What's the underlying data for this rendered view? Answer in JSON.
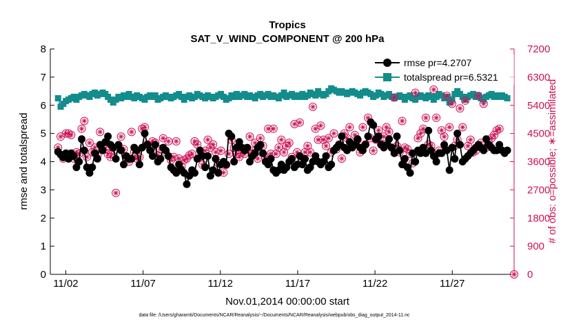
{
  "chart_data": {
    "type": "line",
    "title": "Tropics",
    "subtitle": "SAT_V_WIND_COMPONENT @ 200 hPa",
    "xlabel": "Nov.01,2014 00:00:00 start",
    "ylabel_left": "rmse and totalspread",
    "ylabel_right": "# of obs: o=possible; ∗=assimilated",
    "footnote": "data file: /Users/gharamti/Documents/NCAR/Reanalysis/~/Documents/NCAR/Reanalysis/webpub/obs_diag_output_2014-11.nc",
    "xlim": [
      0.5,
      30.5
    ],
    "ylim_left": [
      0,
      8
    ],
    "ylim_right": [
      0,
      7200
    ],
    "x_ticks": [
      1.5,
      6.5,
      11.5,
      16.5,
      21.5,
      26.5
    ],
    "x_tick_labels": [
      "11/02",
      "11/07",
      "11/12",
      "11/17",
      "11/22",
      "11/27"
    ],
    "left_ticks": [
      "0",
      "1",
      "2",
      "3",
      "4",
      "5",
      "6",
      "7",
      "8"
    ],
    "right_ticks": [
      "0",
      "900",
      "1800",
      "2700",
      "3600",
      "4500",
      "5400",
      "6300",
      "7200"
    ],
    "colors": {
      "rmse": "#000000",
      "spread": "#138c8c",
      "obs": "#cc1156"
    },
    "series": [
      {
        "name": "rmse pr=4.2707",
        "axis": "left",
        "values": [
          4.35,
          4.25,
          4.15,
          4.3,
          4.1,
          4.3,
          4.2,
          3.8,
          4.0,
          4.8,
          4.4,
          3.8,
          3.6,
          3.8,
          4.3,
          4.1,
          4.6,
          4.4,
          4.7,
          4.9,
          4.6,
          4.5,
          4.1,
          4.6,
          4.4,
          3.9,
          4.2,
          4.1,
          4.1,
          4.5,
          4.4,
          3.9,
          4.5,
          5.0,
          4.6,
          4.4,
          4.2,
          4.6,
          4.0,
          4.1,
          4.5,
          4.4,
          4.2,
          3.8,
          3.7,
          3.6,
          3.9,
          3.7,
          3.6,
          3.2,
          3.5,
          3.7,
          3.6,
          4.1,
          4.4,
          4.2,
          3.8,
          4.2,
          3.5,
          3.7,
          4.1,
          3.6,
          3.9,
          4.0,
          3.9,
          5.0,
          4.9,
          4.0,
          4.5,
          4.7,
          4.5,
          4.4,
          4.5,
          4.0,
          4.2,
          4.3,
          4.5,
          4.6,
          4.3,
          4.0,
          3.9,
          4.1,
          3.7,
          3.6,
          3.7,
          3.9,
          3.7,
          3.8,
          4.0,
          4.1,
          3.8,
          3.9,
          4.2,
          3.9,
          4.1,
          3.7,
          3.8,
          4.0,
          4.2,
          4.0,
          3.9,
          4.0,
          4.2,
          3.8,
          3.9,
          4.4,
          4.5,
          4.6,
          4.9,
          4.5,
          4.4,
          4.7,
          4.5,
          4.6,
          4.8,
          4.5,
          4.4,
          4.6,
          4.9,
          5.4,
          5.3,
          4.8,
          4.9,
          4.6,
          4.5,
          4.6,
          4.8,
          4.5,
          4.3,
          4.9,
          4.4,
          3.9,
          4.1,
          3.8,
          3.6,
          4.3,
          4.0,
          4.4,
          4.3,
          4.5,
          4.3,
          5.1,
          4.4,
          4.2,
          4.0,
          4.3,
          4.3,
          4.6,
          4.4,
          3.7,
          4.5,
          4.1,
          5.0,
          4.6,
          4.0,
          4.1,
          4.2,
          4.3,
          4.4,
          4.5,
          4.6,
          4.5,
          4.4,
          4.8,
          4.6,
          4.5,
          4.4,
          4.4,
          4.6,
          4.4,
          4.3,
          4.4
        ]
      },
      {
        "name": "totalspread pr=6.5321",
        "axis": "left",
        "values": [
          6.25,
          5.95,
          6.05,
          6.15,
          6.2,
          6.25,
          6.3,
          6.2,
          6.3,
          6.35,
          6.4,
          6.35,
          6.3,
          6.4,
          6.45,
          6.35,
          6.4,
          6.45,
          6.4,
          6.3,
          6.2,
          6.1,
          6.2,
          6.3,
          6.25,
          6.35,
          6.3,
          6.4,
          6.3,
          6.25,
          6.35,
          6.3,
          6.25,
          6.2,
          6.3,
          6.35,
          6.3,
          6.35,
          6.2,
          6.25,
          6.3,
          6.35,
          6.3,
          6.25,
          6.3,
          6.35,
          6.4,
          6.3,
          6.2,
          6.3,
          6.35,
          6.25,
          6.3,
          6.4,
          6.35,
          6.3,
          6.25,
          6.35,
          6.3,
          6.25,
          6.3,
          6.35,
          6.4,
          6.3,
          6.2,
          6.25,
          6.35,
          6.3,
          6.4,
          6.3,
          6.35,
          6.4,
          6.3,
          6.35,
          6.3,
          6.25,
          6.35,
          6.4,
          6.3,
          6.35,
          6.4,
          6.3,
          6.35,
          6.3,
          6.25,
          6.35,
          6.45,
          6.3,
          6.35,
          6.4,
          6.3,
          6.35,
          6.3,
          6.4,
          6.3,
          6.35,
          6.45,
          6.4,
          6.35,
          6.5,
          6.4,
          6.35,
          6.4,
          6.5,
          6.6,
          6.55,
          6.5,
          6.45,
          6.5,
          6.45,
          6.4,
          6.45,
          6.5,
          6.45,
          6.4,
          6.35,
          6.45,
          6.5,
          6.45,
          6.4,
          6.3,
          6.35,
          6.45,
          6.4,
          6.3,
          6.35,
          6.4,
          6.3,
          6.25,
          6.3,
          6.35,
          6.3,
          6.2,
          6.3,
          6.35,
          6.25,
          6.2,
          6.3,
          6.35,
          6.3,
          6.25,
          6.35,
          6.3,
          6.2,
          6.3,
          6.4,
          6.35,
          6.25,
          6.3,
          6.1,
          6.2,
          6.4,
          6.5,
          6.4,
          6.3,
          6.2,
          6.3,
          6.35,
          6.4,
          6.3,
          6.35,
          6.25,
          6.2,
          6.3,
          6.35,
          6.4,
          6.3,
          6.35,
          6.3,
          6.35,
          6.3,
          6.25
        ]
      },
      {
        "name": "obs_possible",
        "axis": "right",
        "values": [
          4050,
          4400,
          3700,
          4500,
          4500,
          4450,
          3700,
          3900,
          3850,
          4650,
          4900,
          3750,
          4200,
          3900,
          4050,
          3800,
          4550,
          4100,
          4000,
          3850,
          3750,
          3950,
          2600,
          4100,
          4400,
          4000,
          3750,
          3600,
          4550,
          3900,
          3700,
          3750,
          4650,
          4700,
          4150,
          4100,
          4250,
          4200,
          3800,
          4000,
          4350,
          3900,
          4250,
          3650,
          3750,
          4250,
          3700,
          3450,
          3650,
          3700,
          3800,
          3850,
          4250,
          4150,
          3750,
          3500,
          3950,
          4300,
          4050,
          4150,
          3900,
          3550,
          3950,
          3250,
          3500,
          3850,
          4300,
          4050,
          3850,
          3750,
          3900,
          3850,
          4000,
          4400,
          3950,
          4200,
          3700,
          4350,
          4100,
          3750,
          4650,
          3850,
          4650,
          3850,
          4050,
          4300,
          3900,
          4100,
          4200,
          3750,
          4800,
          3900,
          4850,
          3700,
          3900,
          4100,
          3900,
          5350,
          4650,
          4300,
          4750,
          4300,
          4100,
          4350,
          3900,
          4500,
          4000,
          4150,
          3700,
          4500,
          4350,
          4700,
          4100,
          4450,
          4300,
          3900,
          4700,
          4150,
          5000,
          4350,
          3950,
          4300,
          4600,
          4150,
          4400,
          4700,
          4550,
          4050,
          5650,
          4100,
          3900,
          4900,
          4050,
          4000,
          3850,
          3550,
          5800,
          4350,
          4500,
          4650,
          5000,
          4150,
          4100,
          5900,
          5000,
          3950,
          4600,
          4400,
          5700,
          4700,
          5450,
          4100,
          4300,
          5300,
          4700,
          5550,
          4100,
          4300,
          3900,
          3950,
          5700,
          4200,
          5450,
          4050,
          4200,
          4350,
          4450,
          4600,
          4650
        ]
      },
      {
        "name": "obs_assimilated",
        "axis": "right",
        "values": [
          4050,
          4400,
          3700,
          4500,
          4500,
          4450,
          3700,
          3900,
          3850,
          4650,
          4900,
          3750,
          4200,
          3900,
          4050,
          3800,
          4550,
          4100,
          4000,
          3850,
          3750,
          3950,
          2600,
          4100,
          4400,
          4000,
          3750,
          3600,
          4550,
          3900,
          3700,
          3750,
          4650,
          4700,
          4150,
          4100,
          4250,
          4200,
          3800,
          4000,
          4350,
          3900,
          4250,
          3650,
          3750,
          4250,
          3700,
          3450,
          3650,
          3700,
          3800,
          3850,
          4250,
          4150,
          3750,
          3500,
          3950,
          4300,
          4050,
          4150,
          3900,
          3550,
          3950,
          3250,
          3500,
          3850,
          4300,
          4050,
          3850,
          3750,
          3900,
          3850,
          4000,
          4400,
          3950,
          4200,
          3700,
          4350,
          4100,
          3750,
          4650,
          3850,
          4650,
          3850,
          4050,
          4300,
          3900,
          4100,
          4200,
          3750,
          4800,
          3900,
          4850,
          3700,
          3900,
          4100,
          3900,
          5350,
          4650,
          4300,
          4750,
          4300,
          4100,
          4350,
          3900,
          4500,
          4000,
          4150,
          3700,
          4500,
          4350,
          4700,
          4100,
          4450,
          4300,
          3900,
          4700,
          4150,
          5000,
          4350,
          3950,
          4300,
          4600,
          4150,
          4400,
          4700,
          4550,
          4050,
          5650,
          4100,
          3900,
          4900,
          4050,
          4000,
          3850,
          3550,
          5800,
          4350,
          4500,
          4650,
          5000,
          4150,
          4100,
          5900,
          5000,
          3950,
          4600,
          4400,
          5700,
          4700,
          5450,
          4100,
          4300,
          5300,
          4700,
          5550,
          4100,
          4300,
          3900,
          3950,
          5700,
          4200,
          5450,
          4050,
          4200,
          4350,
          4450,
          4600,
          4650
        ]
      }
    ],
    "extra_point": {
      "x": 30.5,
      "y_right": 0
    },
    "legend": {
      "location": "top-right",
      "entries": [
        "rmse pr=4.2707",
        "totalspread pr=6.5321"
      ]
    }
  }
}
